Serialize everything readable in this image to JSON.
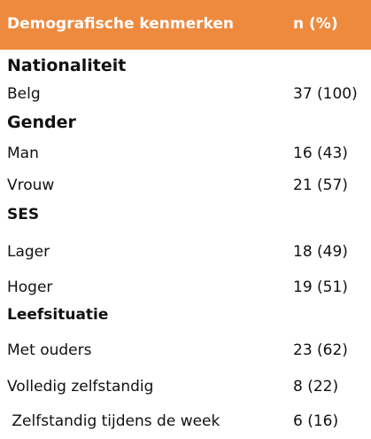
{
  "header": {
    "col1": "Demografische kenmerken",
    "col2": "n (%)"
  },
  "sections": [
    {
      "title": "Nationaliteit",
      "rows": [
        {
          "label": "Belg",
          "value": "37 (100)"
        }
      ]
    },
    {
      "title": "Gender",
      "rows": [
        {
          "label": "Man",
          "value": "16 (43)"
        },
        {
          "label": "Vrouw",
          "value": "21 (57)"
        }
      ]
    },
    {
      "title": "SES",
      "rows": [
        {
          "label": "Lager",
          "value": "18 (49)"
        },
        {
          "label": "Hoger",
          "value": "19 (51)"
        }
      ]
    },
    {
      "title": "Leefsituatie",
      "rows": [
        {
          "label": "Met ouders",
          "value": "23 (62)"
        },
        {
          "label": "Volledig zelfstandig",
          "value": "8 (22)"
        },
        {
          "label": " Zelfstandig tijdens de week",
          "value": "6 (16)"
        }
      ]
    }
  ],
  "colors": {
    "header_bg": "#ee8a3e",
    "header_text": "#ffffff"
  }
}
